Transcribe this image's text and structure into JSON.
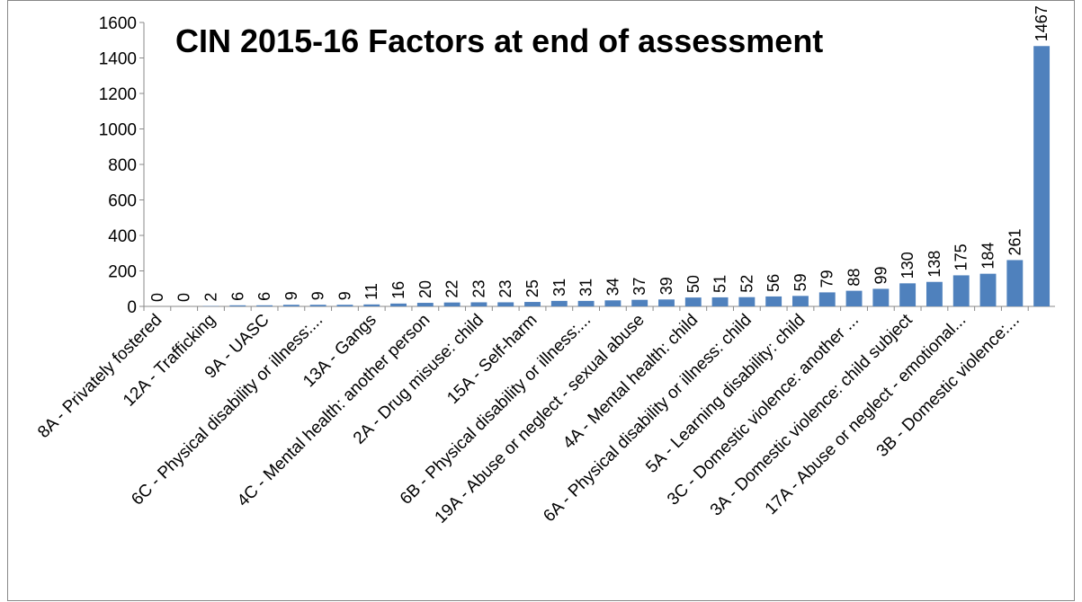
{
  "chart_data": {
    "type": "bar",
    "title": "CIN 2015-16 Factors at end of assessment",
    "categories": [
      "8A - Privately fostered",
      null,
      "12A - Trafficking",
      null,
      "9A - UASC",
      null,
      "6C - Physical disability or illness:...",
      null,
      "13A - Gangs",
      null,
      "4C - Mental health: another person",
      null,
      "2A - Drug misuse: child",
      null,
      "15A - Self-harm",
      null,
      "6B - Physical disability or illness:...",
      null,
      "19A - Abuse or neglect - sexual abuse",
      null,
      "4A - Mental health: child",
      null,
      "6A - Physical disability or illness: child",
      null,
      "5A - Learning disability: child",
      null,
      "3C - Domestic violence: another ...",
      null,
      "3A - Domestic violence: child subject",
      null,
      "17A - Abuse or neglect - emotional...",
      null,
      "3B - Domestic violence:...",
      null
    ],
    "values": [
      0,
      0,
      2,
      6,
      6,
      9,
      9,
      9,
      11,
      16,
      20,
      22,
      23,
      23,
      25,
      31,
      31,
      34,
      37,
      39,
      50,
      51,
      52,
      56,
      59,
      79,
      88,
      99,
      130,
      138,
      175,
      184,
      261,
      1467
    ],
    "color": "#4f81bd",
    "ylim": [
      0,
      1600
    ],
    "yticks": [
      0,
      200,
      400,
      600,
      800,
      1000,
      1200,
      1400,
      1600
    ],
    "grid": false
  }
}
